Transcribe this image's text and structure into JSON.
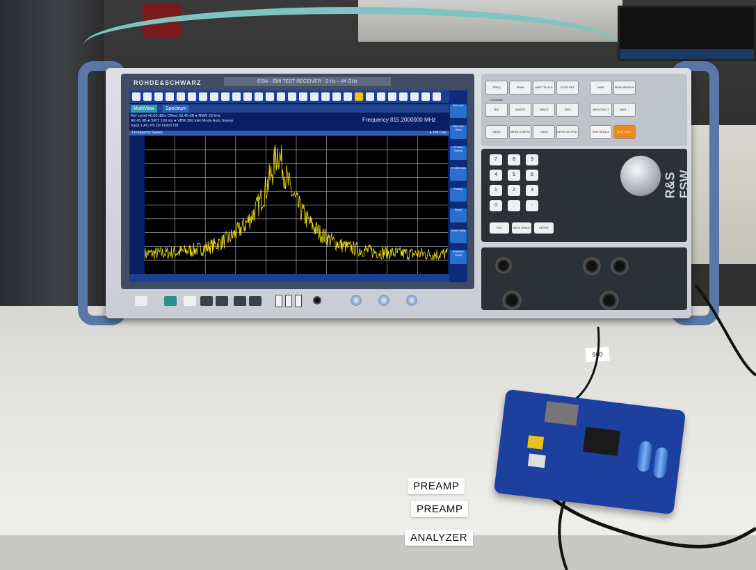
{
  "instrument": {
    "brand": "ROHDE&SCHWARZ",
    "model_strip": "ESW · EMI TEST RECEIVER · 2 Hz – 44 GHz",
    "logo": "R&S ESW"
  },
  "screen": {
    "tabs": [
      "MultiView",
      "Spectrum"
    ],
    "info_line1": "Ref Level 40.00 dBm   Offset 33.40 dB ● RBW 20 kHz",
    "info_line2": "Att 45 dB ● SWT 100 ms ● VBW 200 kHz   Mode Auto Sweep",
    "info_line3": "Input 1 AC   PS On   Notch Off",
    "frequency": "Frequency 815.2000000 MHz",
    "sweep_label": "1 Frequency Sweep",
    "trace_label": "● 1Pk Clrw",
    "softkeys": [
      "Ref Level",
      "Ref Level Offset",
      "RF Atten Manual",
      "RF Atten Auto",
      "Preamp",
      "Range",
      "Scale Config",
      "Amplitude Config"
    ],
    "trace_color": "#f5e30a",
    "grid_color": "#b8bcc6",
    "plot_bg": "#000000"
  },
  "keys": {
    "function_row1": [
      "FREQ CHANNEL",
      "SPAN",
      "AMPT SCALE",
      "AUTO SET",
      "MKR",
      "PEAK SEARCH"
    ],
    "function_row2": [
      "BW",
      "SWEEP",
      "TRACE",
      "TRIG",
      "MKR FUNCT",
      "MKR→"
    ],
    "function_row3": [
      "MEAS",
      "MEAS CONFIG",
      "LINES",
      "INPUT OUTPUT",
      "RUN SINGLE",
      "RUN CONT"
    ],
    "numpad": [
      "7",
      "8",
      "9",
      "4",
      "5",
      "6",
      "1",
      "2",
      "3",
      "0",
      ".",
      "-"
    ],
    "bottom": [
      "ESC",
      "BACK SPACE",
      "ENTER"
    ]
  },
  "desk_labels": [
    "PREAMP",
    "PREAMP",
    "ANALYZER"
  ],
  "cable_tag": "900"
}
